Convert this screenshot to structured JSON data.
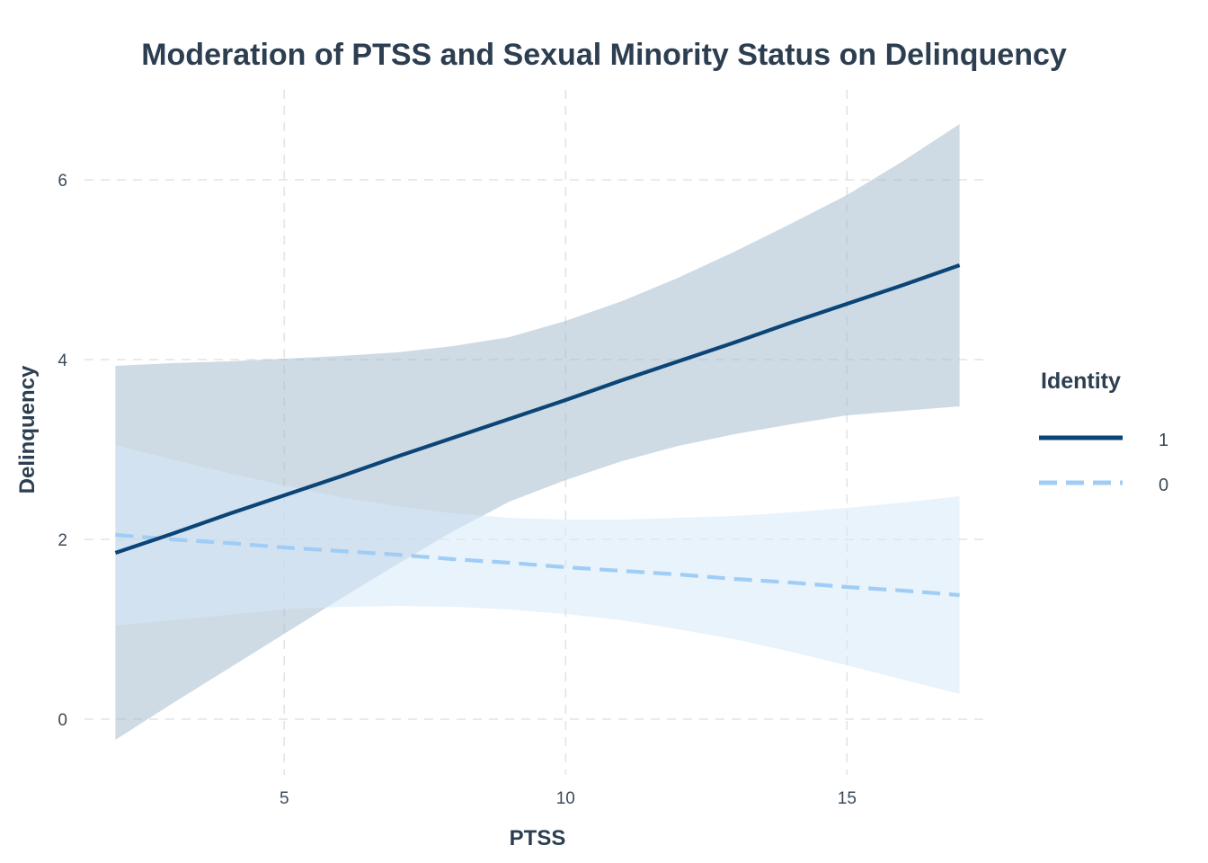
{
  "chart_data": {
    "type": "line",
    "title": "Moderation of PTSS and Sexual Minority Status on Delinquency",
    "xlabel": "PTSS",
    "ylabel": "Delinquency",
    "xlim": [
      1.45,
      17.55
    ],
    "ylim": [
      -0.62,
      7.0
    ],
    "xticks": [
      5,
      10,
      15
    ],
    "xtick_labels": [
      "5",
      "10",
      "15"
    ],
    "yticks": [
      0,
      2,
      4,
      6
    ],
    "ytick_labels": [
      "0",
      "2",
      "4",
      "6"
    ],
    "grid": true,
    "grid_style": "dashed",
    "legend": {
      "title": "Identity",
      "position": "right",
      "entries": [
        {
          "label": "1",
          "style": "solid",
          "color": "#0b4577"
        },
        {
          "label": "0",
          "style": "dashed",
          "color": "#9fcdf5"
        }
      ]
    },
    "series": [
      {
        "name": "1",
        "line_color": "#0b4577",
        "line_style": "solid",
        "ribbon_color": "#a2b8cb",
        "ribbon_opacity": 0.52,
        "x": [
          2,
          3,
          4,
          5,
          6,
          7,
          8,
          9,
          10,
          11,
          12,
          13,
          14,
          15,
          16,
          17
        ],
        "fit": [
          1.85,
          2.06,
          2.28,
          2.49,
          2.7,
          2.92,
          3.13,
          3.34,
          3.55,
          3.77,
          3.98,
          4.19,
          4.41,
          4.62,
          4.83,
          5.05
        ],
        "lower": [
          -0.23,
          0.17,
          0.56,
          0.95,
          1.34,
          1.72,
          2.09,
          2.42,
          2.66,
          2.87,
          3.04,
          3.17,
          3.28,
          3.38,
          3.43,
          3.48
        ],
        "upper": [
          3.93,
          3.96,
          3.98,
          4.01,
          4.04,
          4.08,
          4.15,
          4.25,
          4.43,
          4.65,
          4.91,
          5.2,
          5.51,
          5.83,
          6.21,
          6.62
        ]
      },
      {
        "name": "0",
        "line_color": "#9fcdf5",
        "line_style": "dashed",
        "ribbon_color": "#d7e9fa",
        "ribbon_opacity": 0.55,
        "x": [
          2,
          3,
          4,
          5,
          6,
          7,
          8,
          9,
          10,
          11,
          12,
          13,
          14,
          15,
          16,
          17
        ],
        "fit": [
          2.05,
          2.0,
          1.96,
          1.91,
          1.87,
          1.83,
          1.78,
          1.74,
          1.69,
          1.65,
          1.61,
          1.56,
          1.52,
          1.47,
          1.43,
          1.38
        ],
        "lower": [
          1.04,
          1.1,
          1.16,
          1.22,
          1.25,
          1.26,
          1.25,
          1.22,
          1.17,
          1.1,
          1.0,
          0.89,
          0.75,
          0.6,
          0.44,
          0.28
        ],
        "upper": [
          3.05,
          2.89,
          2.74,
          2.6,
          2.47,
          2.37,
          2.29,
          2.24,
          2.22,
          2.22,
          2.24,
          2.26,
          2.3,
          2.35,
          2.41,
          2.48
        ]
      }
    ]
  }
}
